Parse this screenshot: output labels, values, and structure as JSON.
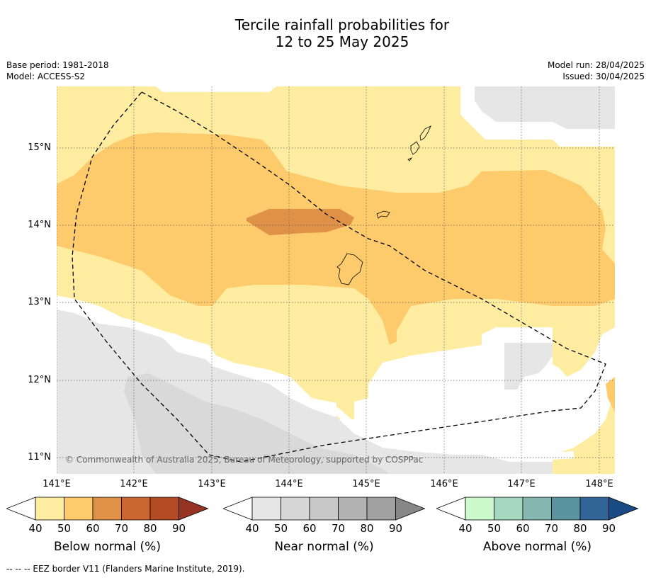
{
  "title": {
    "line1": "Tercile rainfall probabilities for",
    "line2": "12 to 25 May 2025"
  },
  "meta": {
    "base_period": "Base period: 1981-2018",
    "model": "Model: ACCESS-S2",
    "model_run": "Model run: 28/04/2025",
    "issued": "Issued: 30/04/2025"
  },
  "map": {
    "copyright": "© Commonwealth of Australia 2025, Bureau of Meteorology, supported by COSPPac",
    "lat_labels": [
      "15°N",
      "14°N",
      "13°N",
      "12°N",
      "11°N"
    ],
    "lon_labels": [
      "141°E",
      "142°E",
      "143°E",
      "144°E",
      "145°E",
      "146°E",
      "147°E",
      "148°E"
    ],
    "colors": {
      "below_50": "#feeca0",
      "below_60": "#fdcb6b",
      "below_70": "#e09148",
      "near_50": "#e6e6e6",
      "near_60": "#d9d9d9",
      "eez_border": "#000000"
    }
  },
  "colorbars": [
    {
      "label": "Below normal (%)",
      "ticks": [
        "40",
        "50",
        "60",
        "70",
        "80",
        "90"
      ],
      "colors": [
        "#ffffff",
        "#feeca0",
        "#fdcb6b",
        "#e09148",
        "#cc6630",
        "#b24b26",
        "#963424"
      ]
    },
    {
      "label": "Near normal (%)",
      "ticks": [
        "40",
        "50",
        "60",
        "70",
        "80",
        "90"
      ],
      "colors": [
        "#ffffff",
        "#e6e6e6",
        "#d6d6d6",
        "#c8c8c8",
        "#b2b2b2",
        "#a0a0a0",
        "#878787"
      ]
    },
    {
      "label": "Above normal (%)",
      "ticks": [
        "40",
        "50",
        "60",
        "70",
        "80",
        "90"
      ],
      "colors": [
        "#ffffff",
        "#ccfacc",
        "#a5d8be",
        "#85b7b1",
        "#5b93a0",
        "#326597",
        "#1a4b84"
      ]
    }
  ],
  "footnote": "--  --  -- EEZ border V11 (Flanders Marine Institute, 2019)."
}
